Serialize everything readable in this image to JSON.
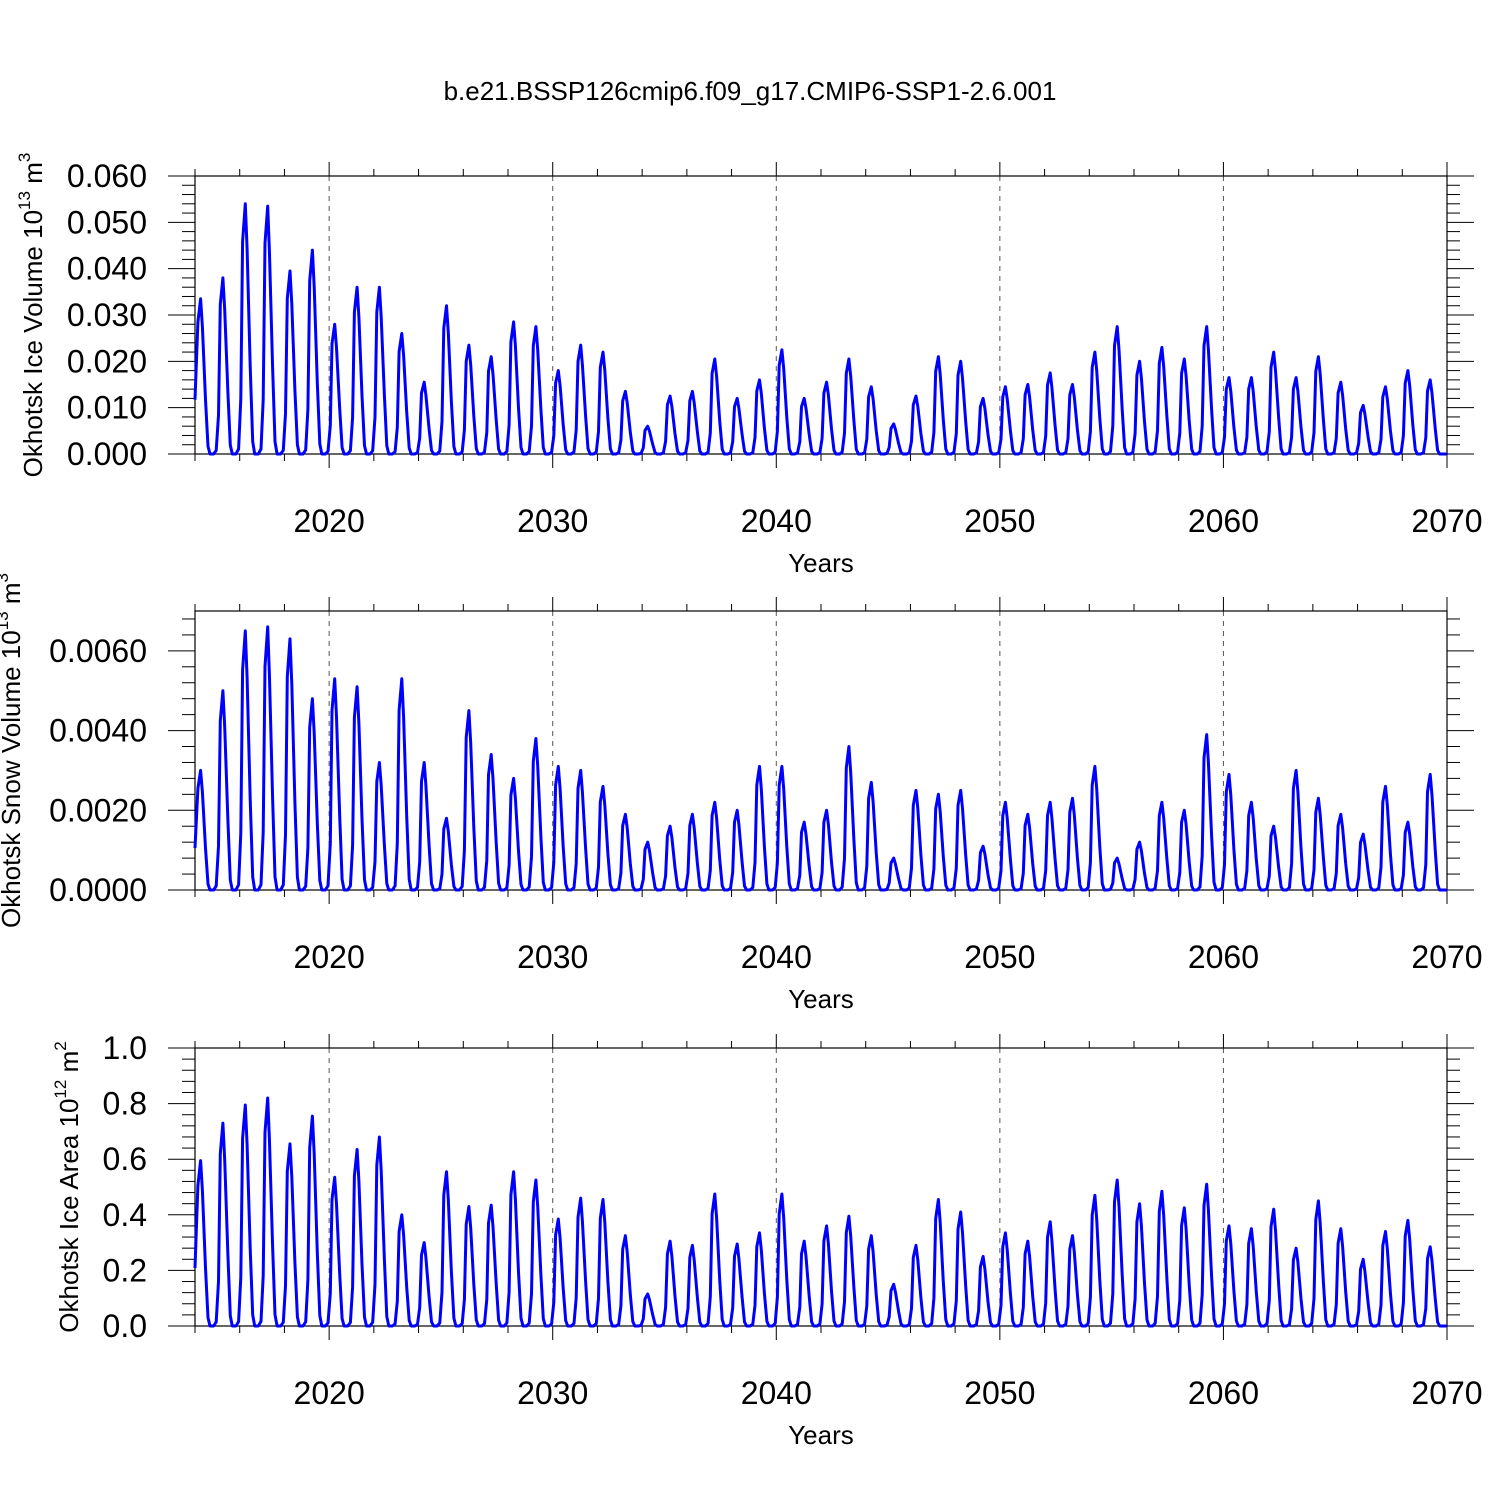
{
  "chart_data": {
    "type": "line",
    "title": "b.e21.BSSP126cmip6.f09_g17.CMIP6-SSP1-2.6.001",
    "series_color": "#0000ff",
    "grid": "dashed vertical lines at major x ticks",
    "panels": [
      {
        "ylabel": "Okhotsk Ice Volume 10",
        "ylabel_exp": "13",
        "ylabel_unit": " m",
        "ylabel_unit_exp": "3",
        "xlabel": "Years",
        "xlim": [
          2014,
          2070
        ],
        "ylim": [
          0,
          0.06
        ],
        "xticks": [
          "2020",
          "2030",
          "2040",
          "2050",
          "2060",
          "2070"
        ],
        "yticks": [
          "0.000",
          "0.010",
          "0.020",
          "0.030",
          "0.040",
          "0.050",
          "0.060"
        ],
        "x": [
          2014.25,
          2015.25,
          2016.25,
          2017.25,
          2018.25,
          2019.25,
          2020.25,
          2021.25,
          2022.25,
          2023.25,
          2024.25,
          2025.25,
          2026.25,
          2027.25,
          2028.25,
          2029.25,
          2030.25,
          2031.25,
          2032.25,
          2033.25,
          2034.25,
          2035.25,
          2036.25,
          2037.25,
          2038.25,
          2039.25,
          2040.25,
          2041.25,
          2042.25,
          2043.25,
          2044.25,
          2045.25,
          2046.25,
          2047.25,
          2048.25,
          2049.25,
          2050.25,
          2051.25,
          2052.25,
          2053.25,
          2054.25,
          2055.25,
          2056.25,
          2057.25,
          2058.25,
          2059.25,
          2060.25,
          2061.25,
          2062.25,
          2063.25,
          2064.25,
          2065.25,
          2066.25,
          2067.25,
          2068.25,
          2069.25
        ],
        "values": [
          0.0335,
          0.038,
          0.054,
          0.0535,
          0.0395,
          0.044,
          0.028,
          0.036,
          0.036,
          0.026,
          0.0155,
          0.032,
          0.0235,
          0.021,
          0.0285,
          0.0275,
          0.018,
          0.0235,
          0.022,
          0.0135,
          0.006,
          0.0125,
          0.0135,
          0.0205,
          0.012,
          0.016,
          0.0225,
          0.012,
          0.0155,
          0.0205,
          0.0145,
          0.0065,
          0.0125,
          0.021,
          0.02,
          0.012,
          0.0145,
          0.015,
          0.0175,
          0.015,
          0.022,
          0.0275,
          0.02,
          0.023,
          0.0205,
          0.0275,
          0.0165,
          0.0165,
          0.022,
          0.0165,
          0.021,
          0.0155,
          0.0105,
          0.0145,
          0.018,
          0.016
        ]
      },
      {
        "ylabel": "Okhotsk Snow Volume 10",
        "ylabel_exp": "13",
        "ylabel_unit": " m",
        "ylabel_unit_exp": "3",
        "xlabel": "Years",
        "xlim": [
          2014,
          2070
        ],
        "ylim": [
          0,
          0.007
        ],
        "xticks": [
          "2020",
          "2030",
          "2040",
          "2050",
          "2060",
          "2070"
        ],
        "yticks": [
          "0.0000",
          "0.0020",
          "0.0040",
          "0.0060"
        ],
        "x": [
          2014.25,
          2015.25,
          2016.25,
          2017.25,
          2018.25,
          2019.25,
          2020.25,
          2021.25,
          2022.25,
          2023.25,
          2024.25,
          2025.25,
          2026.25,
          2027.25,
          2028.25,
          2029.25,
          2030.25,
          2031.25,
          2032.25,
          2033.25,
          2034.25,
          2035.25,
          2036.25,
          2037.25,
          2038.25,
          2039.25,
          2040.25,
          2041.25,
          2042.25,
          2043.25,
          2044.25,
          2045.25,
          2046.25,
          2047.25,
          2048.25,
          2049.25,
          2050.25,
          2051.25,
          2052.25,
          2053.25,
          2054.25,
          2055.25,
          2056.25,
          2057.25,
          2058.25,
          2059.25,
          2060.25,
          2061.25,
          2062.25,
          2063.25,
          2064.25,
          2065.25,
          2066.25,
          2067.25,
          2068.25,
          2069.25
        ],
        "values": [
          0.003,
          0.005,
          0.0065,
          0.0066,
          0.0063,
          0.0048,
          0.0053,
          0.0051,
          0.0032,
          0.0053,
          0.0032,
          0.0018,
          0.0045,
          0.0034,
          0.0028,
          0.0038,
          0.0031,
          0.003,
          0.0026,
          0.0019,
          0.0012,
          0.0016,
          0.0019,
          0.0022,
          0.002,
          0.0031,
          0.0031,
          0.0017,
          0.002,
          0.0036,
          0.0027,
          0.0008,
          0.0025,
          0.0024,
          0.0025,
          0.0011,
          0.0022,
          0.0019,
          0.0022,
          0.0023,
          0.0031,
          0.0008,
          0.0012,
          0.0022,
          0.002,
          0.0039,
          0.0029,
          0.0022,
          0.0016,
          0.003,
          0.0023,
          0.0019,
          0.0014,
          0.0026,
          0.0017,
          0.0029
        ]
      },
      {
        "ylabel": "Okhotsk Ice Area 10",
        "ylabel_exp": "12",
        "ylabel_unit": " m",
        "ylabel_unit_exp": "2",
        "xlabel": "Years",
        "xlim": [
          2014,
          2070
        ],
        "ylim": [
          0,
          1.0
        ],
        "xticks": [
          "2020",
          "2030",
          "2040",
          "2050",
          "2060",
          "2070"
        ],
        "yticks": [
          "0.0",
          "0.2",
          "0.4",
          "0.6",
          "0.8",
          "1.0"
        ],
        "x": [
          2014.25,
          2015.25,
          2016.25,
          2017.25,
          2018.25,
          2019.25,
          2020.25,
          2021.25,
          2022.25,
          2023.25,
          2024.25,
          2025.25,
          2026.25,
          2027.25,
          2028.25,
          2029.25,
          2030.25,
          2031.25,
          2032.25,
          2033.25,
          2034.25,
          2035.25,
          2036.25,
          2037.25,
          2038.25,
          2039.25,
          2040.25,
          2041.25,
          2042.25,
          2043.25,
          2044.25,
          2045.25,
          2046.25,
          2047.25,
          2048.25,
          2049.25,
          2050.25,
          2051.25,
          2052.25,
          2053.25,
          2054.25,
          2055.25,
          2056.25,
          2057.25,
          2058.25,
          2059.25,
          2060.25,
          2061.25,
          2062.25,
          2063.25,
          2064.25,
          2065.25,
          2066.25,
          2067.25,
          2068.25,
          2069.25
        ],
        "values": [
          0.595,
          0.73,
          0.795,
          0.82,
          0.655,
          0.755,
          0.535,
          0.635,
          0.68,
          0.4,
          0.3,
          0.555,
          0.43,
          0.435,
          0.555,
          0.525,
          0.385,
          0.46,
          0.455,
          0.325,
          0.115,
          0.305,
          0.29,
          0.475,
          0.295,
          0.335,
          0.475,
          0.305,
          0.36,
          0.395,
          0.325,
          0.15,
          0.29,
          0.455,
          0.41,
          0.25,
          0.335,
          0.305,
          0.375,
          0.325,
          0.47,
          0.525,
          0.44,
          0.485,
          0.425,
          0.51,
          0.36,
          0.35,
          0.42,
          0.28,
          0.45,
          0.35,
          0.24,
          0.34,
          0.38,
          0.285
        ]
      }
    ]
  }
}
